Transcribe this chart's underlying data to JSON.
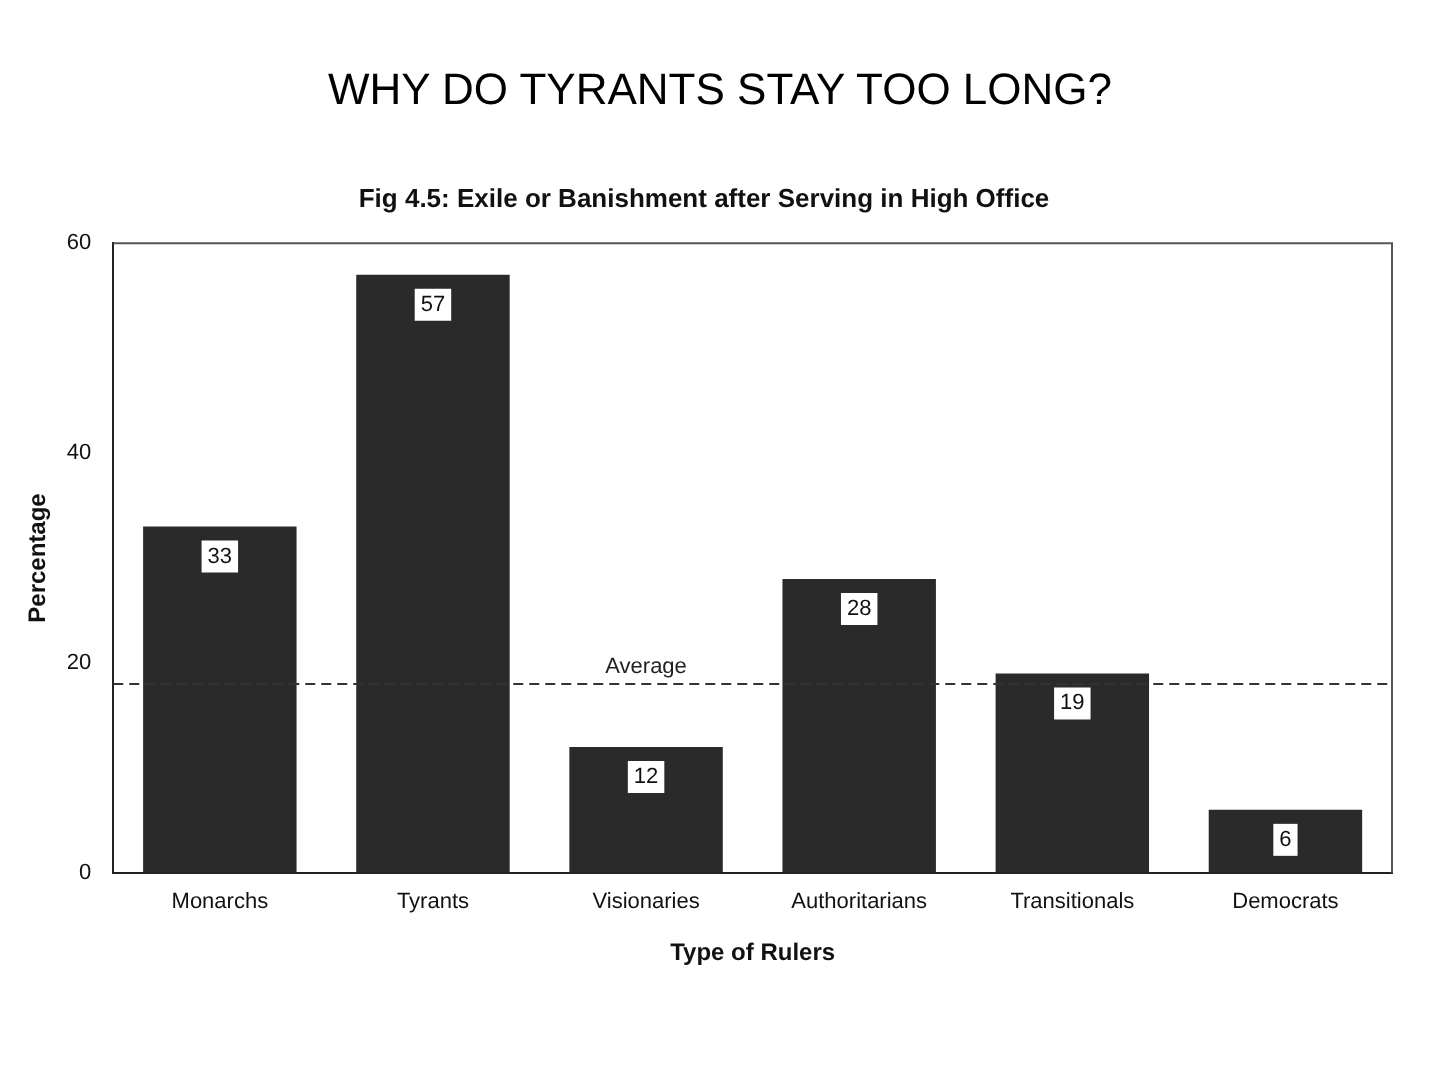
{
  "chart_data": {
    "type": "bar",
    "title": "WHY DO TYRANTS STAY TOO LONG?",
    "subtitle": "Fig 4.5: Exile or Banishment after Serving in High Office",
    "xlabel": "Type of Rulers",
    "ylabel": "Percentage",
    "categories": [
      "Monarchs",
      "Tyrants",
      "Visionaries",
      "Authoritarians",
      "Transitionals",
      "Democrats"
    ],
    "values": [
      33,
      57,
      12,
      28,
      19,
      6
    ],
    "color": "#2a2a2a",
    "ylim": [
      0,
      60
    ],
    "yticks": [
      0,
      20,
      40,
      60
    ],
    "grid": false,
    "legend": false,
    "data_labels": true,
    "ref_lines": [
      {
        "axis": "y",
        "value": 18,
        "label": "Average",
        "line_style": "dashed",
        "color": "#333333"
      }
    ]
  }
}
